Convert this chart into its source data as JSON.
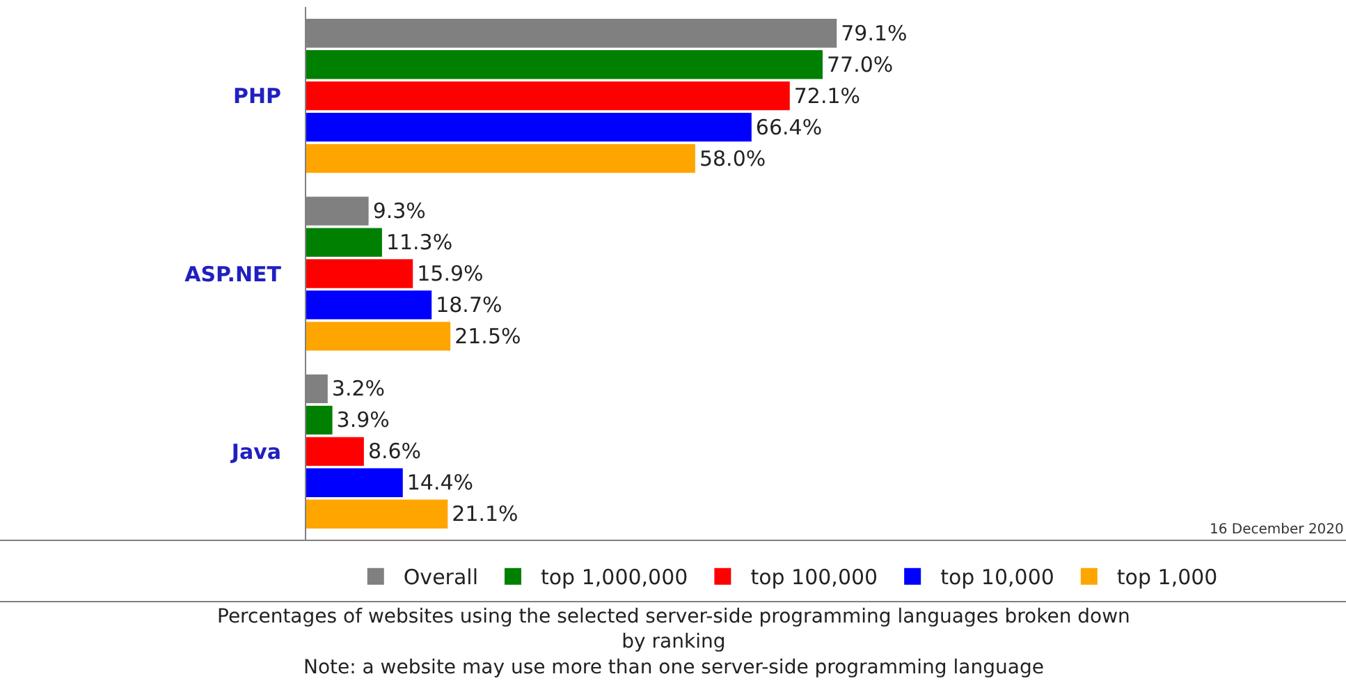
{
  "chart_data": {
    "type": "bar",
    "orientation": "horizontal",
    "categories": [
      "PHP",
      "ASP.NET",
      "Java"
    ],
    "series": [
      {
        "name": "Overall",
        "color": "#808080",
        "values": [
          79.1,
          9.3,
          3.2
        ],
        "value_labels": [
          "79.1%",
          "9.3%",
          "3.2%"
        ]
      },
      {
        "name": "top 1,000,000",
        "color": "#008000",
        "values": [
          77.0,
          11.3,
          3.9
        ],
        "value_labels": [
          "77.0%",
          "11.3%",
          "3.9%"
        ]
      },
      {
        "name": "top 100,000",
        "color": "#ff0000",
        "values": [
          72.1,
          15.9,
          8.6
        ],
        "value_labels": [
          "72.1%",
          "15.9%",
          "8.6%"
        ]
      },
      {
        "name": "top 10,000",
        "color": "#0000ff",
        "values": [
          66.4,
          18.7,
          14.4
        ],
        "value_labels": [
          "66.4%",
          "18.7%",
          "14.4%"
        ]
      },
      {
        "name": "top 1,000",
        "color": "#ffa500",
        "values": [
          58.0,
          21.5,
          21.1
        ],
        "value_labels": [
          "58.0%",
          "21.5%",
          "21.1%"
        ]
      }
    ],
    "legend": "bottom",
    "annotations": [
      "16 December 2020",
      "Percentages of websites using the selected server-side programming languages broken down by ranking",
      "Note: a website may use more than one server-side programming language"
    ]
  }
}
